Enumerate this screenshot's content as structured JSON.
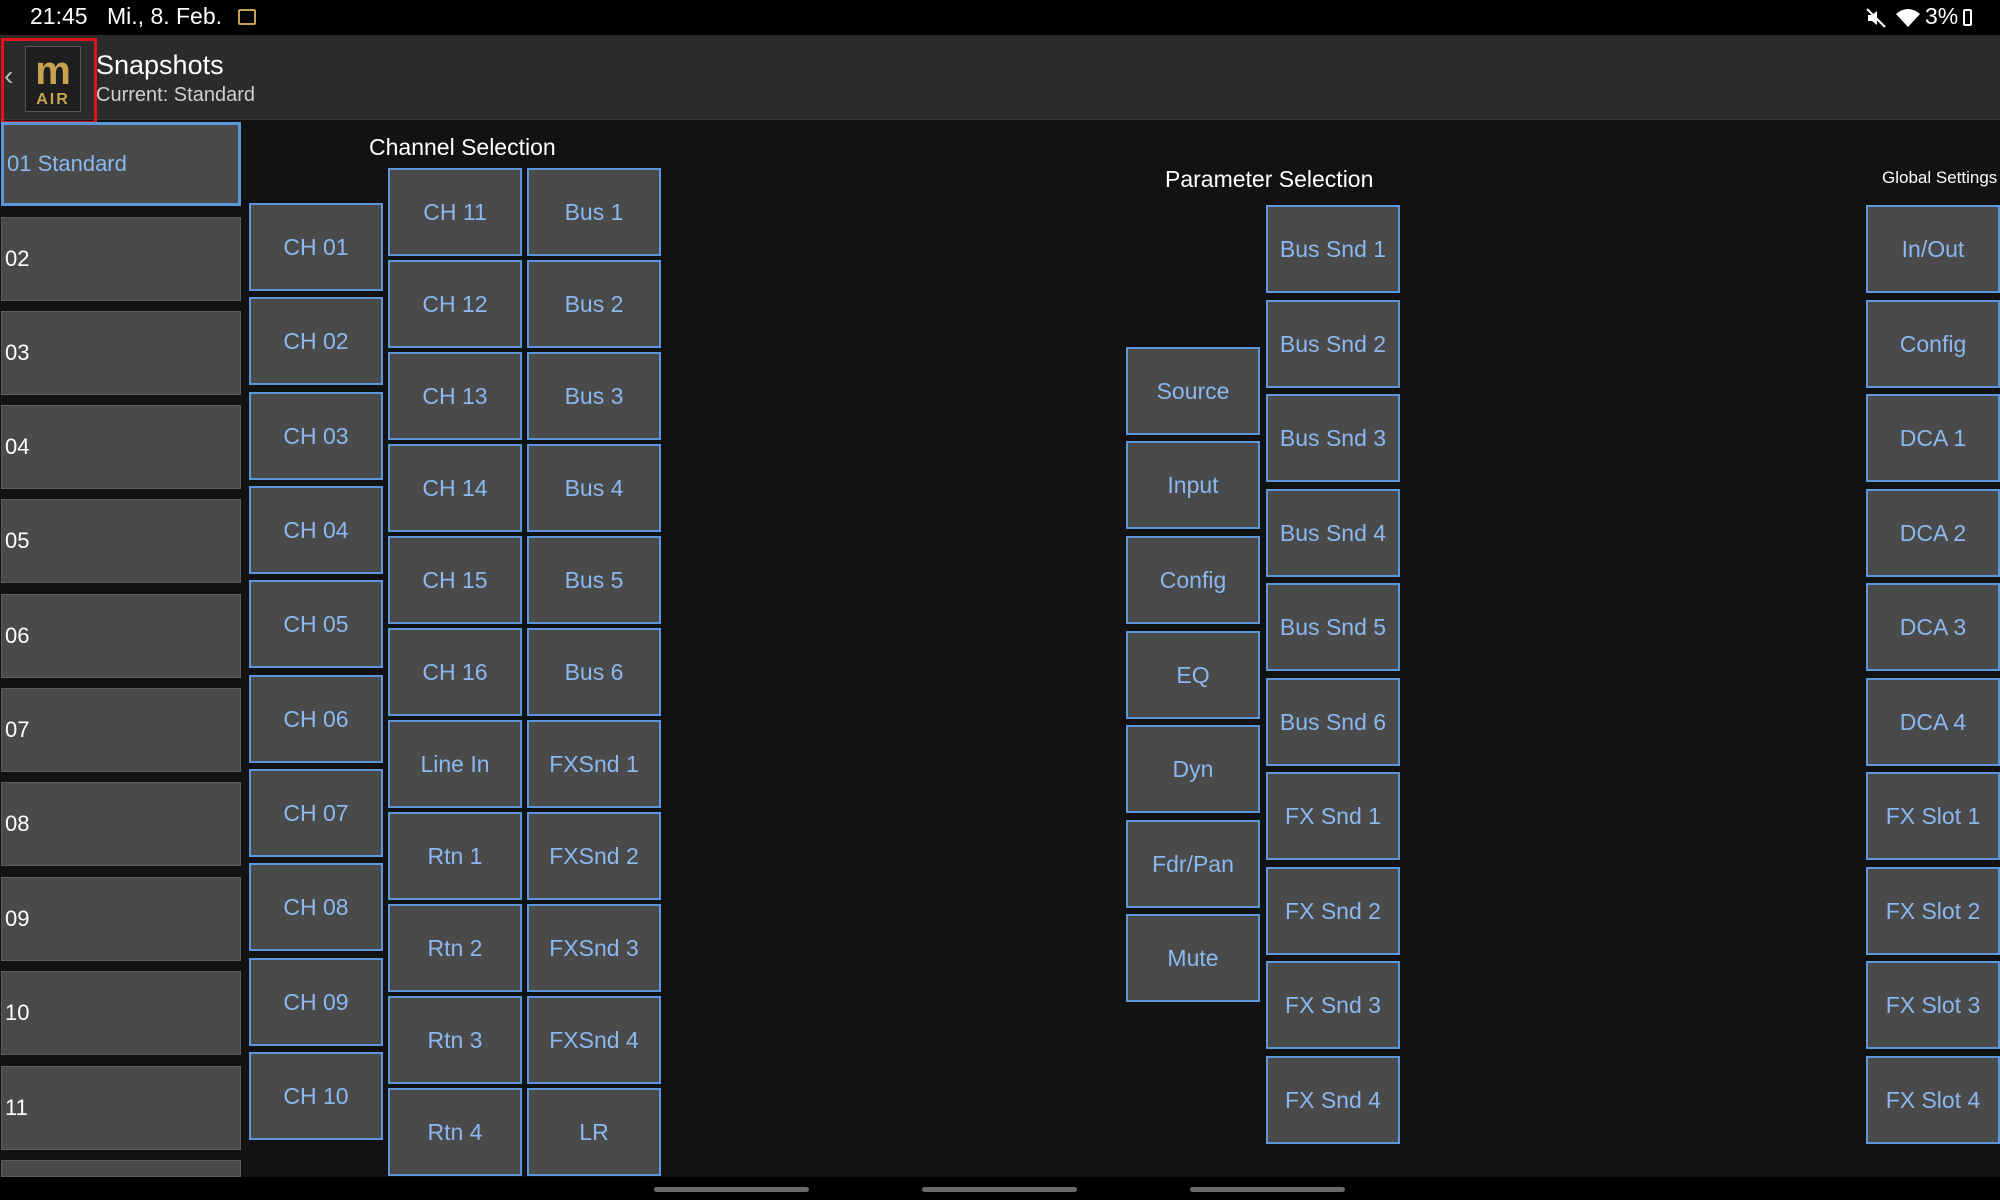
{
  "status_bar": {
    "time": "21:45",
    "date": "Mi., 8. Feb.",
    "battery": "3%"
  },
  "app_bar": {
    "title": "Snapshots",
    "subtitle": "Current: Standard",
    "logo_text": "AIR"
  },
  "snapshots": [
    "01 Standard",
    "02",
    "03",
    "04",
    "05",
    "06",
    "07",
    "08",
    "09",
    "10",
    "11"
  ],
  "channel_selection": {
    "title": "Channel Selection",
    "col1": [
      "CH 01",
      "CH 02",
      "CH 03",
      "CH 04",
      "CH 05",
      "CH 06",
      "CH 07",
      "CH 08",
      "CH 09",
      "CH 10"
    ],
    "col2": [
      "CH 11",
      "CH 12",
      "CH 13",
      "CH 14",
      "CH 15",
      "CH 16",
      "Line In",
      "Rtn 1",
      "Rtn 2",
      "Rtn 3",
      "Rtn 4"
    ],
    "col3": [
      "Bus 1",
      "Bus 2",
      "Bus 3",
      "Bus 4",
      "Bus 5",
      "Bus 6",
      "FXSnd 1",
      "FXSnd 2",
      "FXSnd 3",
      "FXSnd 4",
      "LR"
    ]
  },
  "parameter_selection": {
    "title": "Parameter Selection",
    "col1": [
      "Source",
      "Input",
      "Config",
      "EQ",
      "Dyn",
      "Fdr/Pan",
      "Mute"
    ],
    "col2": [
      "Bus Snd 1",
      "Bus Snd 2",
      "Bus Snd 3",
      "Bus Snd 4",
      "Bus Snd 5",
      "Bus Snd 6",
      "FX Snd 1",
      "FX Snd 2",
      "FX Snd 3",
      "FX Snd 4"
    ]
  },
  "global_settings": {
    "title": "Global Settings",
    "items": [
      "In/Out",
      "Config",
      "DCA 1",
      "DCA 2",
      "DCA 3",
      "DCA 4",
      "FX Slot 1",
      "FX Slot 2",
      "FX Slot 3",
      "FX Slot 4"
    ]
  },
  "colors": {
    "accent": "#5a97dd",
    "button_bg": "#4a4a4a",
    "background": "#121212",
    "highlight_frame": "#e1141c",
    "logo_gold": "#c9a24f"
  }
}
